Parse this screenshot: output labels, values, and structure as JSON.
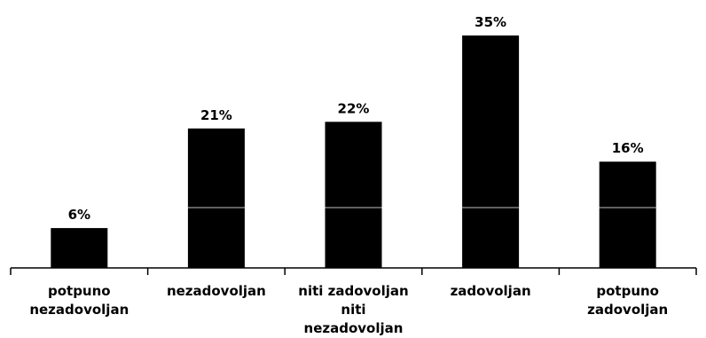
{
  "chart_data": {
    "type": "bar",
    "categories": [
      [
        "potpuno",
        "nezadovoljan"
      ],
      [
        "nezadovoljan"
      ],
      [
        "niti zadovoljan",
        "niti",
        "nezadovoljan"
      ],
      [
        "zadovoljan"
      ],
      [
        "potpuno",
        "zadovoljan"
      ]
    ],
    "values": [
      6,
      21,
      22,
      35,
      16
    ],
    "data_labels": [
      "6%",
      "21%",
      "22%",
      "35%",
      "16%"
    ],
    "title": "",
    "xlabel": "",
    "ylabel": "",
    "ylim": [
      0,
      35
    ],
    "grid": false,
    "bar_color": "#000000"
  }
}
